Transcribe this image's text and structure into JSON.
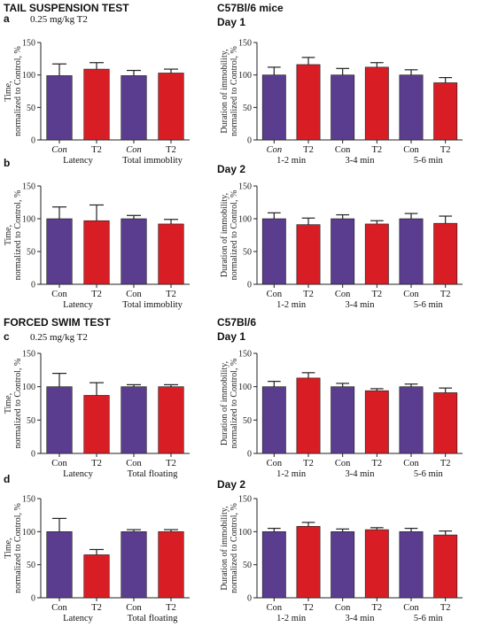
{
  "headers": {
    "tst_title": "TAIL SUSPENSION TEST",
    "tst_mice": "C57Bl/6 mice",
    "fst_title": "FORCED SWIM TEST",
    "fst_mice": "C57Bl/6"
  },
  "colors": {
    "con": "#5b3d8f",
    "t2": "#d81e24",
    "axis": "#222222"
  },
  "chart_data": [
    {
      "id": "a",
      "type": "bar",
      "panel_label": "a",
      "subtitle": "0.25 mg/kg T2",
      "day_label": "",
      "categories": [
        "Con",
        "T2",
        "Con",
        "T2"
      ],
      "italic_categories": [
        true,
        false,
        true,
        false
      ],
      "groups": [
        "Latency",
        "Total immoblity"
      ],
      "values": [
        99,
        109,
        99,
        103
      ],
      "errors": [
        18,
        10,
        8,
        6
      ],
      "ylabel": [
        "Time,",
        "normalized to Control, %"
      ],
      "ylim": [
        0,
        150
      ],
      "yticks": [
        0,
        50,
        100,
        150
      ]
    },
    {
      "id": "a2",
      "type": "bar",
      "panel_label": "",
      "subtitle": "",
      "day_label": "Day 1",
      "categories": [
        "Con",
        "T2",
        "Con",
        "T2",
        "Con",
        "T2"
      ],
      "italic_categories": [
        true,
        false,
        false,
        false,
        false,
        false
      ],
      "groups": [
        "1-2 min",
        "3-4 min",
        "5-6 min"
      ],
      "values": [
        100,
        116,
        100,
        112,
        100,
        88
      ],
      "errors": [
        12,
        11,
        10,
        7,
        8,
        8
      ],
      "ylabel": [
        "Duration of immobility,",
        "normalized to Control, %"
      ],
      "ylim": [
        0,
        150
      ],
      "yticks": [
        0,
        50,
        100,
        150
      ]
    },
    {
      "id": "b",
      "type": "bar",
      "panel_label": "b",
      "subtitle": "",
      "day_label": "",
      "categories": [
        "Con",
        "T2",
        "Con",
        "T2"
      ],
      "italic_categories": [
        false,
        false,
        false,
        false
      ],
      "groups": [
        "Latency",
        "Total immoblity"
      ],
      "values": [
        100,
        97,
        100,
        92
      ],
      "errors": [
        18,
        24,
        5,
        7
      ],
      "ylabel": [
        "Time,",
        "normalized to Control, %"
      ],
      "ylim": [
        0,
        150
      ],
      "yticks": [
        0,
        50,
        100,
        150
      ]
    },
    {
      "id": "b2",
      "type": "bar",
      "panel_label": "",
      "subtitle": "",
      "day_label": "Day 2",
      "categories": [
        "Con",
        "T2",
        "Con",
        "T2",
        "Con",
        "T2"
      ],
      "italic_categories": [
        false,
        false,
        false,
        false,
        false,
        false
      ],
      "groups": [
        "1-2 min",
        "3-4 min",
        "5-6 min"
      ],
      "values": [
        100,
        91,
        100,
        92,
        100,
        93
      ],
      "errors": [
        9,
        10,
        6,
        5,
        8,
        11
      ],
      "ylabel": [
        "Duration of immobility,",
        "normalized to Control, %"
      ],
      "ylim": [
        0,
        150
      ],
      "yticks": [
        0,
        50,
        100,
        150
      ]
    },
    {
      "id": "c",
      "type": "bar",
      "panel_label": "c",
      "subtitle": "0.25 mg/kg T2",
      "day_label": "",
      "categories": [
        "Con",
        "T2",
        "Con",
        "T2"
      ],
      "italic_categories": [
        false,
        false,
        false,
        false
      ],
      "groups": [
        "Latency",
        "Total floating"
      ],
      "values": [
        100,
        87,
        100,
        100
      ],
      "errors": [
        20,
        19,
        3,
        3
      ],
      "ylabel": [
        "Time,",
        "normalized to Control, %"
      ],
      "ylim": [
        0,
        150
      ],
      "yticks": [
        0,
        50,
        100,
        150
      ]
    },
    {
      "id": "c2",
      "type": "bar",
      "panel_label": "",
      "subtitle": "",
      "day_label": "Day 1",
      "categories": [
        "Con",
        "T2",
        "Con",
        "T2",
        "Con",
        "T2"
      ],
      "italic_categories": [
        false,
        false,
        false,
        false,
        false,
        false
      ],
      "groups": [
        "1-2 min",
        "3-4 min",
        "5-6 min"
      ],
      "values": [
        100,
        113,
        100,
        94,
        100,
        91
      ],
      "errors": [
        8,
        8,
        5,
        3,
        4,
        7
      ],
      "ylabel": [
        "Duration of immobility,",
        "normalized to Control, %"
      ],
      "ylim": [
        0,
        150
      ],
      "yticks": [
        0,
        50,
        100,
        150
      ]
    },
    {
      "id": "d",
      "type": "bar",
      "panel_label": "d",
      "subtitle": "",
      "day_label": "",
      "categories": [
        "Con",
        "T2",
        "Con",
        "T2"
      ],
      "italic_categories": [
        false,
        false,
        false,
        false
      ],
      "groups": [
        "Latency",
        "Total floating"
      ],
      "values": [
        100,
        65,
        100,
        100
      ],
      "errors": [
        20,
        8,
        3,
        3
      ],
      "ylabel": [
        "Time,",
        "normalized to Control, %"
      ],
      "ylim": [
        0,
        150
      ],
      "yticks": [
        0,
        50,
        100,
        150
      ]
    },
    {
      "id": "d2",
      "type": "bar",
      "panel_label": "",
      "subtitle": "",
      "day_label": "Day 2",
      "categories": [
        "Con",
        "T2",
        "Con",
        "T2",
        "Con",
        "T2"
      ],
      "italic_categories": [
        false,
        false,
        false,
        false,
        false,
        false
      ],
      "groups": [
        "1-2 min",
        "3-4 min",
        "5-6 min"
      ],
      "values": [
        100,
        108,
        100,
        103,
        100,
        95
      ],
      "errors": [
        5,
        6,
        4,
        3,
        5,
        6
      ],
      "ylabel": [
        "Duration of immobility,",
        "normalized to Control, %"
      ],
      "ylim": [
        0,
        150
      ],
      "yticks": [
        0,
        50,
        100,
        150
      ]
    }
  ]
}
